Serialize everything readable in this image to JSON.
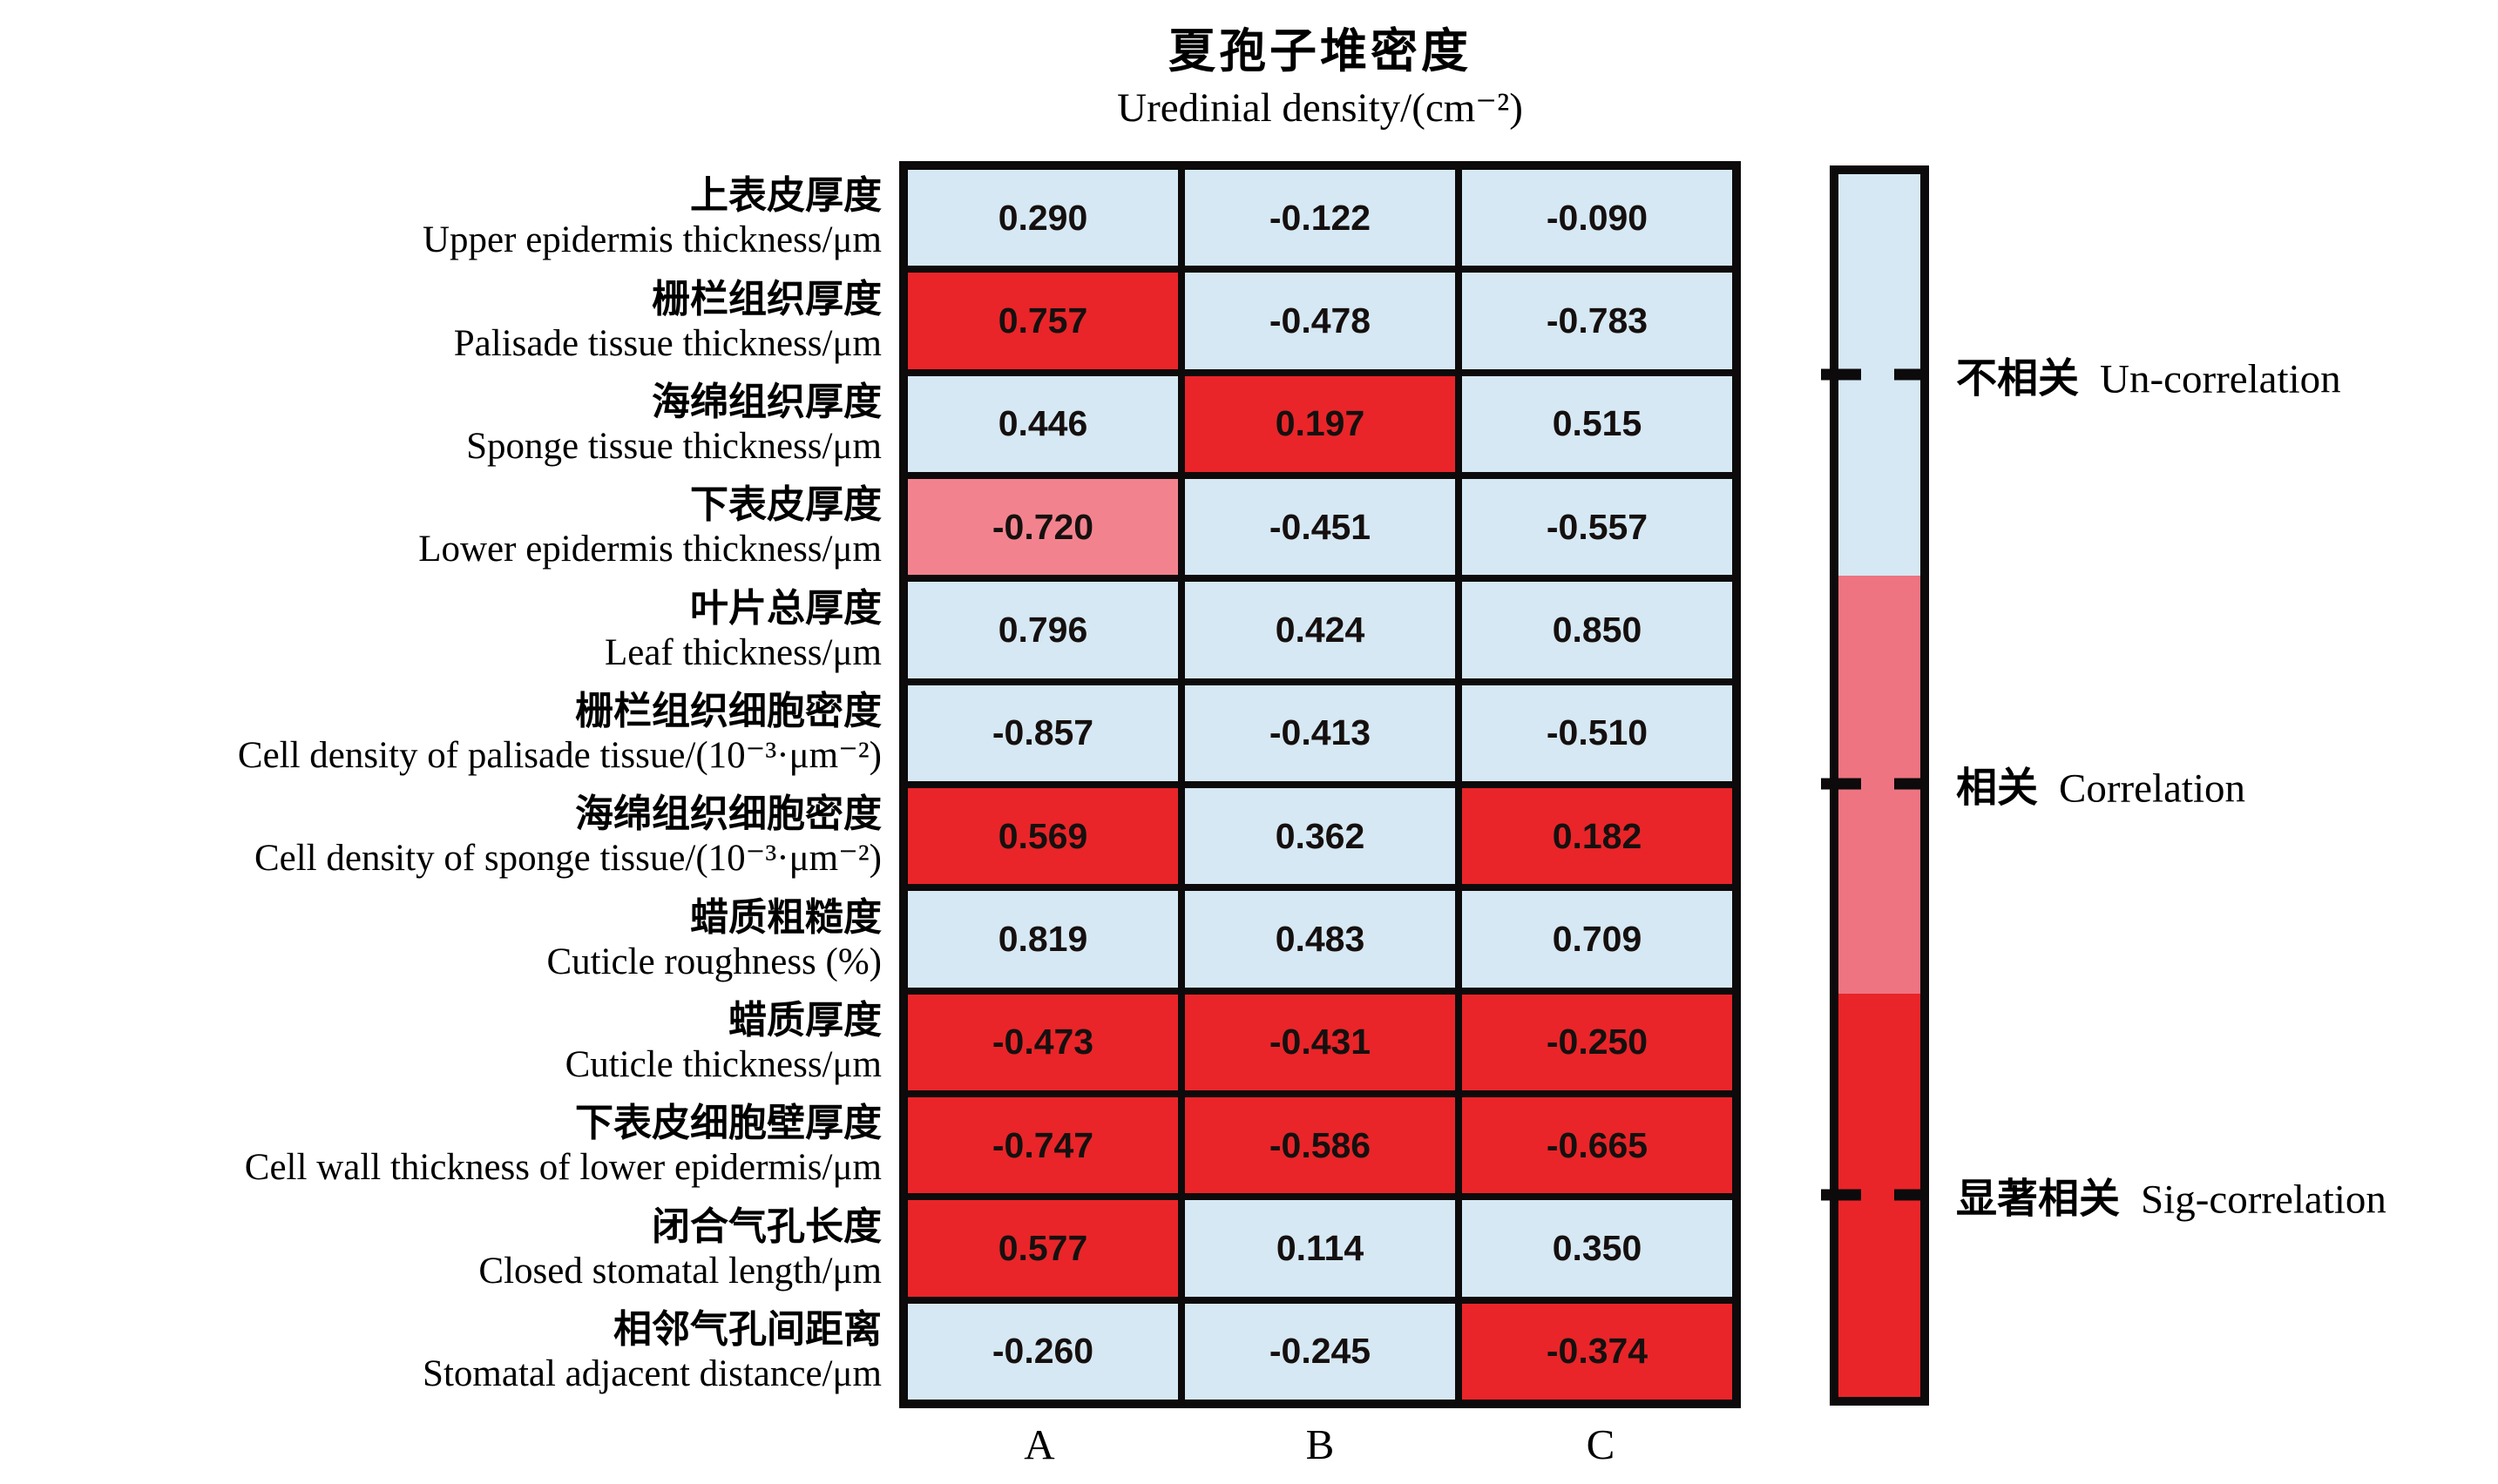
{
  "title": {
    "zh": "夏孢子堆密度",
    "en": "Uredinial density/(cm⁻²)"
  },
  "chart_data": {
    "type": "heatmap",
    "columns": [
      "A",
      "B",
      "C"
    ],
    "rows": [
      {
        "label_zh": "上表皮厚度",
        "label_en": "Upper epidermis thickness/μm",
        "values": [
          "0.290",
          "-0.122",
          "-0.090"
        ],
        "levels": [
          "un",
          "un",
          "un"
        ]
      },
      {
        "label_zh": "栅栏组织厚度",
        "label_en": "Palisade tissue thickness/μm",
        "values": [
          "0.757",
          "-0.478",
          "-0.783"
        ],
        "levels": [
          "sig",
          "un",
          "un"
        ]
      },
      {
        "label_zh": "海绵组织厚度",
        "label_en": "Sponge tissue thickness/μm",
        "values": [
          "0.446",
          "0.197",
          "0.515"
        ],
        "levels": [
          "un",
          "sig",
          "un"
        ]
      },
      {
        "label_zh": "下表皮厚度",
        "label_en": "Lower epidermis thickness/μm",
        "values": [
          "-0.720",
          "-0.451",
          "-0.557"
        ],
        "levels": [
          "corr",
          "un",
          "un"
        ]
      },
      {
        "label_zh": "叶片总厚度",
        "label_en": "Leaf thickness/μm",
        "values": [
          "0.796",
          "0.424",
          "0.850"
        ],
        "levels": [
          "un",
          "un",
          "un"
        ]
      },
      {
        "label_zh": "栅栏组织细胞密度",
        "label_en": "Cell density of palisade tissue/(10⁻³·μm⁻²)",
        "values": [
          "-0.857",
          "-0.413",
          "-0.510"
        ],
        "levels": [
          "un",
          "un",
          "un"
        ]
      },
      {
        "label_zh": "海绵组织细胞密度",
        "label_en": "Cell density of sponge tissue/(10⁻³·μm⁻²)",
        "values": [
          "0.569",
          "0.362",
          "0.182"
        ],
        "levels": [
          "sig",
          "un",
          "sig"
        ]
      },
      {
        "label_zh": "蜡质粗糙度",
        "label_en": "Cuticle roughness (%)",
        "values": [
          "0.819",
          "0.483",
          "0.709"
        ],
        "levels": [
          "un",
          "un",
          "un"
        ]
      },
      {
        "label_zh": "蜡质厚度",
        "label_en": "Cuticle thickness/μm",
        "values": [
          "-0.473",
          "-0.431",
          "-0.250"
        ],
        "levels": [
          "sig",
          "sig",
          "sig"
        ]
      },
      {
        "label_zh": "下表皮细胞壁厚度",
        "label_en": "Cell wall thickness of lower epidermis/μm",
        "values": [
          "-0.747",
          "-0.586",
          "-0.665"
        ],
        "levels": [
          "sig",
          "sig",
          "sig"
        ]
      },
      {
        "label_zh": "闭合气孔长度",
        "label_en": "Closed stomatal length/μm",
        "values": [
          "0.577",
          "0.114",
          "0.350"
        ],
        "levels": [
          "sig",
          "un",
          "un"
        ]
      },
      {
        "label_zh": "相邻气孔间距离",
        "label_en": "Stomatal adjacent distance/μm",
        "values": [
          "-0.260",
          "-0.245",
          "-0.374"
        ],
        "levels": [
          "un",
          "un",
          "sig"
        ]
      }
    ],
    "legend": [
      {
        "zh": "不相关",
        "en": "Un-correlation",
        "level": "un"
      },
      {
        "zh": "相关",
        "en": "Correlation",
        "level": "corr"
      },
      {
        "zh": "显著相关",
        "en": "Sig-correlation",
        "level": "sig"
      }
    ],
    "legend_position": "right",
    "colors": {
      "un": "#d6e8f3",
      "corr_cell": "#f2838e",
      "corr_legend": "#ee7482",
      "sig": "#e92529",
      "border": "#0d0a0b"
    }
  }
}
